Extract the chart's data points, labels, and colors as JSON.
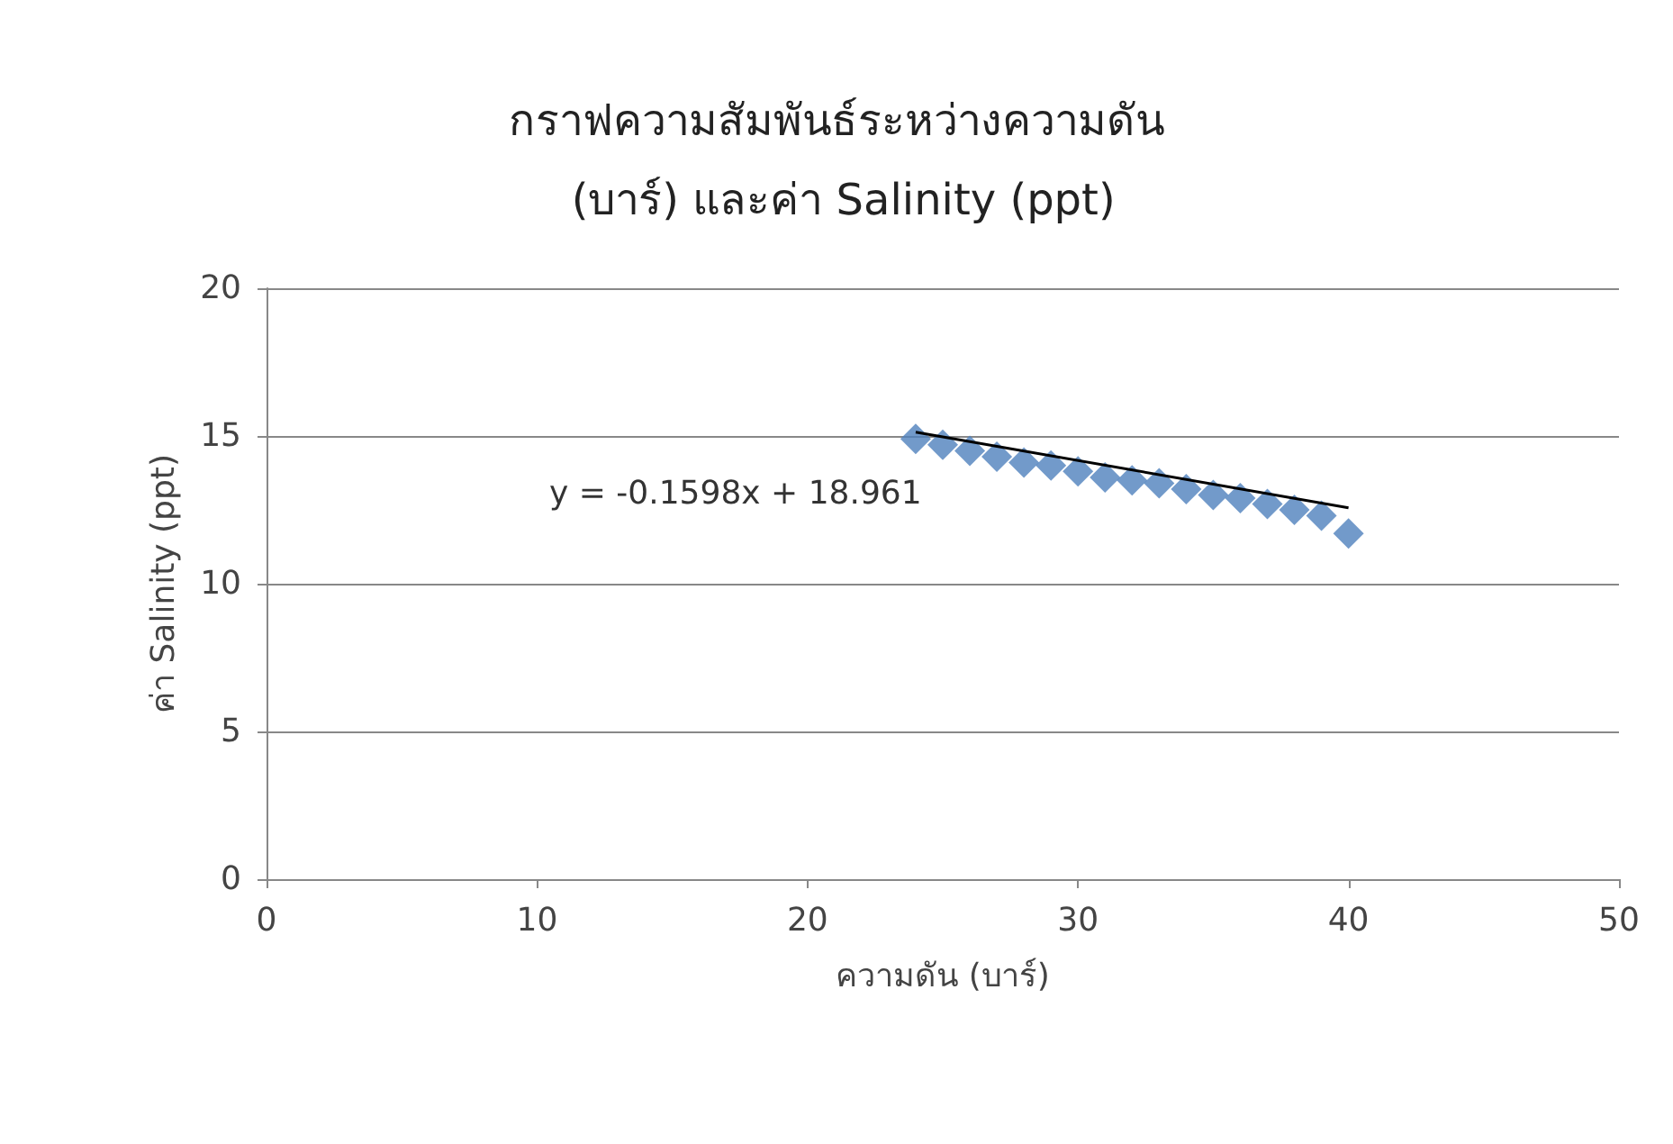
{
  "chart_data": {
    "type": "scatter",
    "title": "กราฟความสัมพันธ์ระหว่างความดัน (บาร์) และค่า Salinity (ppt)",
    "xlabel": "ความดัน (บาร์)",
    "ylabel": "ค่า Salinity (ppt)",
    "x": [
      24,
      25,
      26,
      27,
      28,
      29,
      30,
      31,
      32,
      33,
      34,
      35,
      36,
      37,
      38,
      39,
      40
    ],
    "series": [
      {
        "color": "#4f81bd",
        "marker": "diamond",
        "values": [
          14.9,
          14.7,
          14.5,
          14.3,
          14.1,
          14.0,
          13.8,
          13.6,
          13.5,
          13.4,
          13.2,
          13.0,
          12.9,
          12.7,
          12.5,
          12.3,
          11.7
        ]
      },
      {
        "type": "line",
        "color": "#000000",
        "marker": "none",
        "x": [
          24,
          40
        ],
        "values": [
          15.13,
          12.57
        ]
      }
    ],
    "annotations": [
      "y = -0.1598x + 18.961"
    ],
    "xlim": [
      0,
      50
    ],
    "xticks": [
      0,
      10,
      20,
      30,
      40,
      50
    ],
    "ylim": [
      0,
      20
    ],
    "yticks": [
      0,
      5,
      10,
      15,
      20
    ],
    "grid": "y"
  }
}
